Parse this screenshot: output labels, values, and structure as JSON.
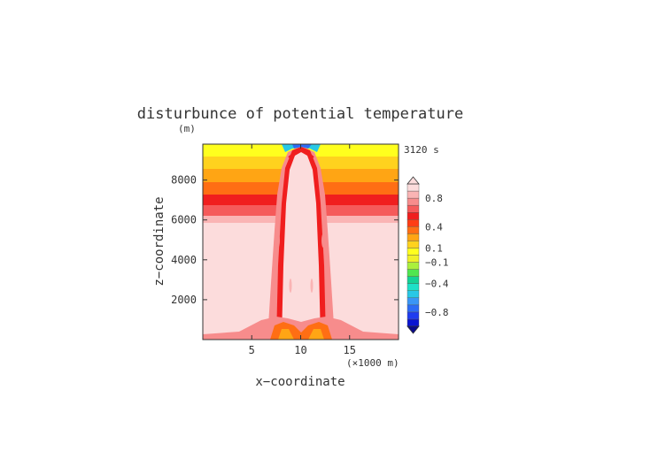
{
  "chart_data": {
    "type": "heatmap",
    "title": "disturbunce of potential temperature",
    "unit_label": "(m)",
    "time_label": "3120 s",
    "xlabel": "x−coordinate",
    "ylabel": "z−coordinate",
    "x_multiplier_label": "(×1000 m)",
    "xlim": [
      0,
      20
    ],
    "ylim": [
      0,
      9800
    ],
    "x_ticks": [
      {
        "value": 5,
        "label": "5"
      },
      {
        "value": 10,
        "label": "10"
      },
      {
        "value": 15,
        "label": "15"
      }
    ],
    "y_ticks": [
      {
        "value": 2000,
        "label": "2000"
      },
      {
        "value": 4000,
        "label": "4000"
      },
      {
        "value": 6000,
        "label": "6000"
      },
      {
        "value": 8000,
        "label": "8000"
      }
    ],
    "colorbar": {
      "levels": [
        -1.0,
        -0.9,
        -0.8,
        -0.7,
        -0.6,
        -0.5,
        -0.4,
        -0.3,
        -0.2,
        -0.1,
        0,
        0.1,
        0.2,
        0.3,
        0.4,
        0.5,
        0.6,
        0.7,
        0.8,
        0.9,
        1.0
      ],
      "colors": [
        "#0a14d2",
        "#1e3cf0",
        "#2c6cf5",
        "#3a96f5",
        "#28c8e6",
        "#1ee0c8",
        "#14d296",
        "#50e650",
        "#aaf03c",
        "#f0f028",
        "#ffff1e",
        "#ffd21e",
        "#ffa514",
        "#ff6e14",
        "#ff3c14",
        "#f01e1e",
        "#f55a5a",
        "#f78c8c",
        "#fab4b4",
        "#fcdcdc"
      ],
      "labels": [
        {
          "value": 0.8,
          "label": "0.8"
        },
        {
          "value": 0.4,
          "label": "0.4"
        },
        {
          "value": 0.1,
          "label": "0.1"
        },
        {
          "value": -0.1,
          "label": "−0.1"
        },
        {
          "value": -0.4,
          "label": "−0.4"
        },
        {
          "value": -0.8,
          "label": "−0.8"
        }
      ]
    },
    "features": [
      {
        "name": "upper-stratified-layer",
        "z_range": [
          6500,
          9800
        ],
        "values_top_to_bottom": [
          0.0,
          0.1,
          0.3,
          0.5,
          0.7
        ]
      },
      {
        "name": "central-thermal-plume",
        "x_center": 10,
        "x_halfwidth": 1.5,
        "z_range": [
          400,
          9500
        ],
        "value": 1.0
      },
      {
        "name": "plume-cap-cold-anomaly",
        "x_center": 10,
        "z": 9700,
        "value": -0.6
      },
      {
        "name": "plume-edge-bands",
        "x": [
          8.2,
          11.8
        ],
        "z_range": [
          6000,
          9500
        ],
        "value": 0.5
      },
      {
        "name": "near-surface-warm-layer",
        "z_range": [
          0,
          1000
        ],
        "x_range": [
          7,
          13
        ],
        "value": 0.5
      }
    ]
  }
}
